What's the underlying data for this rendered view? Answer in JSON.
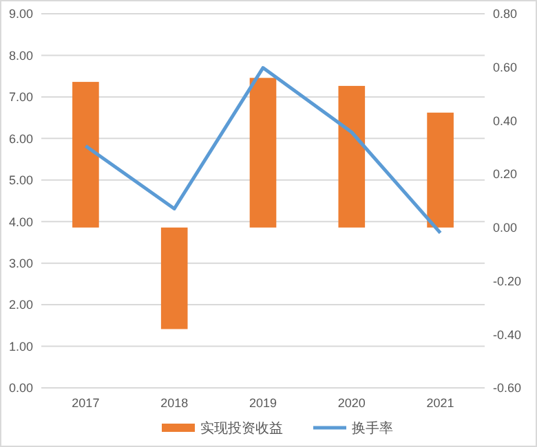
{
  "chart_data": {
    "type": "bar",
    "categories": [
      "2017",
      "2018",
      "2019",
      "2020",
      "2021"
    ],
    "series": [
      {
        "name": "实现投资收益",
        "axis": "y2",
        "color": "#ed7d31",
        "values": [
          0.545,
          -0.38,
          0.56,
          0.53,
          0.43
        ]
      },
      {
        "name": "换手率",
        "type": "line",
        "axis": "y",
        "color": "#5b9bd5",
        "values": [
          5.82,
          4.31,
          7.7,
          6.15,
          3.73
        ]
      }
    ],
    "ylim": [
      0,
      9
    ],
    "yticks": [
      {
        "value": 0,
        "label": "0.00"
      },
      {
        "value": 1,
        "label": "1.00"
      },
      {
        "value": 2,
        "label": "2.00"
      },
      {
        "value": 3,
        "label": "3.00"
      },
      {
        "value": 4,
        "label": "4.00"
      },
      {
        "value": 5,
        "label": "5.00"
      },
      {
        "value": 6,
        "label": "6.00"
      },
      {
        "value": 7,
        "label": "7.00"
      },
      {
        "value": 8,
        "label": "8.00"
      },
      {
        "value": 9,
        "label": "9.00"
      }
    ],
    "y2lim": [
      -0.6,
      0.8
    ],
    "y2ticks": [
      {
        "value": -0.6,
        "label": "-0.60"
      },
      {
        "value": -0.4,
        "label": "-0.40"
      },
      {
        "value": -0.2,
        "label": "-0.20"
      },
      {
        "value": 0,
        "label": "0.00"
      },
      {
        "value": 0.2,
        "label": "0.20"
      },
      {
        "value": 0.4,
        "label": "0.40"
      },
      {
        "value": 0.6,
        "label": "0.60"
      },
      {
        "value": 0.8,
        "label": "0.80"
      }
    ],
    "grid": "y",
    "legend": "bottom",
    "marker": "none",
    "line_style": "solid"
  }
}
